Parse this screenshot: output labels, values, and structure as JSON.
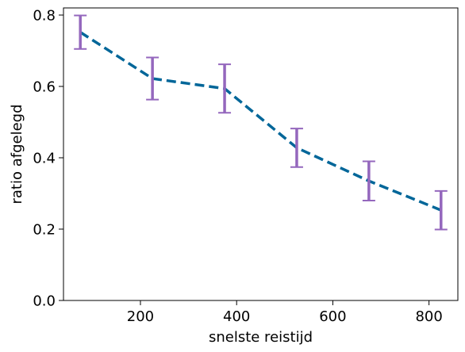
{
  "chart_data": {
    "type": "line",
    "title": "",
    "xlabel": "snelste reistijd",
    "ylabel": "ratio afgelegd",
    "xlim": [
      40,
      860
    ],
    "ylim": [
      0.0,
      0.82
    ],
    "x_ticks": [
      200,
      400,
      600,
      800
    ],
    "y_ticks": [
      0.0,
      0.2,
      0.4,
      0.6,
      0.8
    ],
    "x_tick_labels": [
      "200",
      "400",
      "600",
      "800"
    ],
    "y_tick_labels": [
      "0.0",
      "0.2",
      "0.4",
      "0.6",
      "0.8"
    ],
    "grid": false,
    "legend": "none",
    "series": [
      {
        "name": "",
        "x": [
          75,
          225,
          375,
          525,
          675,
          825
        ],
        "y": [
          0.752,
          0.622,
          0.594,
          0.428,
          0.335,
          0.253
        ],
        "err": [
          0.047,
          0.059,
          0.068,
          0.054,
          0.055,
          0.054
        ],
        "line_color": "#006699",
        "line_style": "dashed",
        "error_color": "#9467bd"
      }
    ]
  }
}
